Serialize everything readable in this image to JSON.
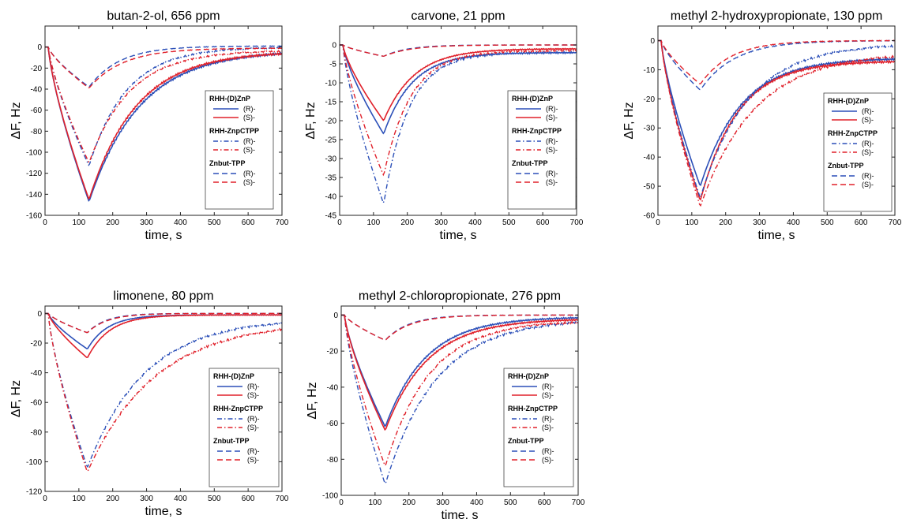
{
  "legend_labels": {
    "group1": "RHH-(D)ZnP",
    "group2": "RHH-ZnpCTPP",
    "group3": "Znbut-TPP",
    "r": "(R)-",
    "s": "(S)-"
  },
  "colors": {
    "r": "#2b4fb8",
    "s": "#e0202a"
  },
  "chart_data": [
    {
      "type": "line",
      "title": "butan-2-ol, 656 ppm",
      "xlabel": "time, s",
      "ylabel": "ΔF, Hz",
      "xlim": [
        0,
        700
      ],
      "ylim": [
        -160,
        20
      ],
      "xticks": [
        0,
        100,
        200,
        300,
        400,
        500,
        600,
        700
      ],
      "yticks": [
        0,
        -20,
        -40,
        -60,
        -80,
        -100,
        -120,
        -140,
        -160
      ],
      "legend": "right",
      "tpeak": 130,
      "series": [
        {
          "name": "RHH-(D)ZnP (R)-",
          "style": "solid",
          "color": "r",
          "peak": -147,
          "tau": 150,
          "end": -3
        },
        {
          "name": "RHH-(D)ZnP (S)-",
          "style": "solid",
          "color": "s",
          "peak": -145,
          "tau": 140,
          "end": -4
        },
        {
          "name": "RHH-ZnpCTPP (R)-",
          "style": "dashdot",
          "color": "r",
          "peak": -113,
          "tau": 110,
          "end": 0
        },
        {
          "name": "RHH-ZnpCTPP (S)-",
          "style": "dashdot",
          "color": "s",
          "peak": -110,
          "tau": 120,
          "end": -3
        },
        {
          "name": "Znbut-TPP (R)-",
          "style": "dashed",
          "color": "r",
          "peak": -38,
          "tau": 90,
          "end": 1
        },
        {
          "name": "Znbut-TPP (S)-",
          "style": "dashed",
          "color": "s",
          "peak": -39,
          "tau": 100,
          "end": -1
        }
      ]
    },
    {
      "type": "line",
      "title": "carvone, 21 ppm",
      "xlabel": "time, s",
      "ylabel": "ΔF, Hz",
      "xlim": [
        0,
        700
      ],
      "ylim": [
        -45,
        5
      ],
      "xticks": [
        0,
        100,
        200,
        300,
        400,
        500,
        600,
        700
      ],
      "yticks": [
        0,
        -5,
        -10,
        -15,
        -20,
        -25,
        -30,
        -35,
        -40,
        -45
      ],
      "legend": "right",
      "tpeak": 130,
      "series": [
        {
          "name": "RHH-(D)ZnP (R)-",
          "style": "solid",
          "color": "r",
          "peak": -23.5,
          "tau": 85,
          "end": -2
        },
        {
          "name": "RHH-(D)ZnP (S)-",
          "style": "solid",
          "color": "s",
          "peak": -20,
          "tau": 90,
          "end": -1
        },
        {
          "name": "RHH-ZnpCTPP (R)-",
          "style": "dashdot",
          "color": "r",
          "peak": -42,
          "tau": 75,
          "end": -2
        },
        {
          "name": "RHH-ZnpCTPP (S)-",
          "style": "dashdot",
          "color": "s",
          "peak": -34.5,
          "tau": 80,
          "end": -1.5
        },
        {
          "name": "Znbut-TPP (R)-",
          "style": "dashed",
          "color": "r",
          "peak": -3,
          "tau": 70,
          "end": 0
        },
        {
          "name": "Znbut-TPP (S)-",
          "style": "dashed",
          "color": "s",
          "peak": -3,
          "tau": 80,
          "end": 0
        }
      ]
    },
    {
      "type": "line",
      "title": "methyl 2-hydroxypropionate, 130 ppm",
      "xlabel": "time, s",
      "ylabel": "ΔF, Hz",
      "xlim": [
        0,
        700
      ],
      "ylim": [
        -60,
        5
      ],
      "xticks": [
        0,
        100,
        200,
        300,
        400,
        500,
        600,
        700
      ],
      "yticks": [
        0,
        -10,
        -20,
        -30,
        -40,
        -50,
        -60
      ],
      "legend": "right",
      "tpeak": 125,
      "series": [
        {
          "name": "RHH-(D)ZnP (R)-",
          "style": "solid",
          "color": "r",
          "peak": -50,
          "tau": 120,
          "end": -6
        },
        {
          "name": "RHH-(D)ZnP (S)-",
          "style": "solid",
          "color": "s",
          "peak": -55,
          "tau": 110,
          "end": -7
        },
        {
          "name": "RHH-ZnpCTPP (R)-",
          "style": "dashdot",
          "color": "r",
          "peak": -54,
          "tau": 140,
          "end": -1
        },
        {
          "name": "RHH-ZnpCTPP (S)-",
          "style": "dashdot",
          "color": "s",
          "peak": -57,
          "tau": 160,
          "end": -4
        },
        {
          "name": "Znbut-TPP (R)-",
          "style": "dashed",
          "color": "r",
          "peak": -17,
          "tau": 100,
          "end": 0
        },
        {
          "name": "Znbut-TPP (S)-",
          "style": "dashed",
          "color": "s",
          "peak": -15,
          "tau": 90,
          "end": 0
        }
      ]
    },
    {
      "type": "line",
      "title": "limonene, 80 ppm",
      "xlabel": "time, s",
      "ylabel": "ΔF, Hz",
      "xlim": [
        0,
        700
      ],
      "ylim": [
        -120,
        5
      ],
      "xticks": [
        0,
        100,
        200,
        300,
        400,
        500,
        600,
        700
      ],
      "yticks": [
        0,
        -20,
        -40,
        -60,
        -80,
        -100,
        -120
      ],
      "legend": "right",
      "tpeak": 125,
      "series": [
        {
          "name": "RHH-(D)ZnP (R)-",
          "style": "solid",
          "color": "r",
          "peak": -24,
          "tau": 60,
          "end": -1
        },
        {
          "name": "RHH-(D)ZnP (S)-",
          "style": "solid",
          "color": "s",
          "peak": -30,
          "tau": 65,
          "end": -1
        },
        {
          "name": "RHH-ZnpCTPP (R)-",
          "style": "dashdot",
          "color": "r",
          "peak": -104,
          "tau": 170,
          "end": -3
        },
        {
          "name": "RHH-ZnpCTPP (S)-",
          "style": "dashdot",
          "color": "s",
          "peak": -107,
          "tau": 200,
          "end": -5
        },
        {
          "name": "Znbut-TPP (R)-",
          "style": "dashed",
          "color": "r",
          "peak": -13,
          "tau": 55,
          "end": 0
        },
        {
          "name": "Znbut-TPP (S)-",
          "style": "dashed",
          "color": "s",
          "peak": -13,
          "tau": 60,
          "end": 0
        }
      ]
    },
    {
      "type": "line",
      "title": "methyl 2-chloropropionate, 276 ppm",
      "xlabel": "time, s",
      "ylabel": "ΔF, Hz",
      "xlim": [
        0,
        700
      ],
      "ylim": [
        -100,
        5
      ],
      "xticks": [
        0,
        100,
        200,
        300,
        400,
        500,
        600,
        700
      ],
      "yticks": [
        0,
        -20,
        -40,
        -60,
        -80,
        -100
      ],
      "legend": "right",
      "tpeak": 130,
      "series": [
        {
          "name": "RHH-(D)ZnP (R)-",
          "style": "solid",
          "color": "r",
          "peak": -62,
          "tau": 120,
          "end": -1
        },
        {
          "name": "RHH-(D)ZnP (S)-",
          "style": "solid",
          "color": "s",
          "peak": -64,
          "tau": 125,
          "end": -2
        },
        {
          "name": "RHH-ZnpCTPP (R)-",
          "style": "dashdot",
          "color": "r",
          "peak": -94,
          "tau": 150,
          "end": -2
        },
        {
          "name": "RHH-ZnpCTPP (S)-",
          "style": "dashdot",
          "color": "s",
          "peak": -84,
          "tau": 130,
          "end": -3
        },
        {
          "name": "Znbut-TPP (R)-",
          "style": "dashed",
          "color": "r",
          "peak": -14,
          "tau": 70,
          "end": 0
        },
        {
          "name": "Znbut-TPP (S)-",
          "style": "dashed",
          "color": "s",
          "peak": -14,
          "tau": 75,
          "end": 0
        }
      ]
    }
  ]
}
